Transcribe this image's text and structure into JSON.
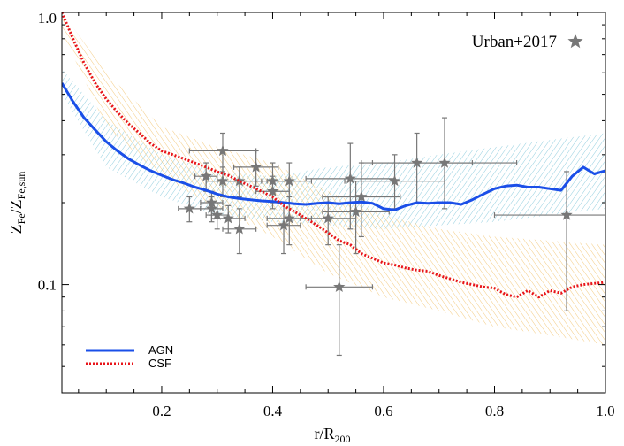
{
  "chart_data": {
    "type": "line",
    "title": "",
    "xlabel": {
      "main": "r/R",
      "sub": "200"
    },
    "ylabel": {
      "z1": "Z",
      "sub1": "Fe",
      "slash": "/",
      "z2": "Z",
      "sub2": "Fe,sun"
    },
    "xlim": [
      0.02,
      1.0
    ],
    "ylim": [
      0.04,
      1.0
    ],
    "yscale": "log",
    "x_ticks": [
      {
        "value": 0.2,
        "label": "0.2"
      },
      {
        "value": 0.4,
        "label": "0.4"
      },
      {
        "value": 0.6,
        "label": "0.6"
      },
      {
        "value": 0.8,
        "label": "0.8"
      },
      {
        "value": 1.0,
        "label": "1.0"
      }
    ],
    "y_ticks": [
      {
        "value": 0.1,
        "label": "0.1"
      },
      {
        "value": 1.0,
        "label": "1.0"
      }
    ],
    "grid": false,
    "legend": {
      "placement": "bottom-left",
      "entries": [
        "AGN",
        "CSF"
      ]
    },
    "annotation": "Urban+2017",
    "series": [
      {
        "name": "AGN",
        "color": "#1a4fe8",
        "style": "solid",
        "x": [
          0.02,
          0.04,
          0.06,
          0.08,
          0.1,
          0.12,
          0.14,
          0.16,
          0.18,
          0.2,
          0.22,
          0.24,
          0.26,
          0.28,
          0.3,
          0.32,
          0.34,
          0.36,
          0.38,
          0.4,
          0.42,
          0.44,
          0.46,
          0.48,
          0.5,
          0.52,
          0.54,
          0.56,
          0.58,
          0.6,
          0.62,
          0.64,
          0.66,
          0.68,
          0.7,
          0.72,
          0.74,
          0.76,
          0.78,
          0.8,
          0.82,
          0.84,
          0.86,
          0.88,
          0.9,
          0.92,
          0.94,
          0.96,
          0.98,
          1.0
        ],
        "y": [
          0.55,
          0.47,
          0.41,
          0.37,
          0.335,
          0.31,
          0.29,
          0.275,
          0.262,
          0.252,
          0.243,
          0.236,
          0.228,
          0.222,
          0.215,
          0.21,
          0.207,
          0.205,
          0.203,
          0.202,
          0.2,
          0.198,
          0.197,
          0.199,
          0.2,
          0.198,
          0.2,
          0.201,
          0.199,
          0.19,
          0.188,
          0.195,
          0.2,
          0.199,
          0.2,
          0.2,
          0.197,
          0.205,
          0.215,
          0.225,
          0.23,
          0.232,
          0.228,
          0.228,
          0.225,
          0.222,
          0.25,
          0.27,
          0.255,
          0.262
        ]
      },
      {
        "name": "CSF",
        "color": "#e8141a",
        "style": "dotted",
        "x": [
          0.02,
          0.04,
          0.06,
          0.08,
          0.1,
          0.12,
          0.14,
          0.16,
          0.18,
          0.2,
          0.22,
          0.24,
          0.26,
          0.28,
          0.3,
          0.32,
          0.34,
          0.36,
          0.38,
          0.4,
          0.42,
          0.44,
          0.46,
          0.48,
          0.5,
          0.52,
          0.54,
          0.56,
          0.58,
          0.6,
          0.62,
          0.64,
          0.66,
          0.68,
          0.7,
          0.72,
          0.74,
          0.76,
          0.78,
          0.8,
          0.82,
          0.84,
          0.86,
          0.88,
          0.9,
          0.92,
          0.94,
          0.96,
          0.98,
          1.0
        ],
        "y": [
          1.0,
          0.8,
          0.65,
          0.55,
          0.48,
          0.43,
          0.39,
          0.36,
          0.33,
          0.31,
          0.3,
          0.29,
          0.28,
          0.27,
          0.26,
          0.252,
          0.24,
          0.23,
          0.22,
          0.21,
          0.195,
          0.185,
          0.175,
          0.165,
          0.155,
          0.145,
          0.14,
          0.13,
          0.125,
          0.12,
          0.118,
          0.115,
          0.113,
          0.112,
          0.108,
          0.105,
          0.102,
          0.1,
          0.098,
          0.097,
          0.092,
          0.09,
          0.095,
          0.09,
          0.095,
          0.093,
          0.098,
          0.1,
          0.101,
          0.102
        ]
      }
    ],
    "bands": [
      {
        "name": "AGN scatter",
        "color": "#7fc6d9",
        "x": [
          0.02,
          0.1,
          0.2,
          0.3,
          0.4,
          0.5,
          0.6,
          0.7,
          0.8,
          0.9,
          1.0
        ],
        "lo": [
          0.5,
          0.27,
          0.21,
          0.18,
          0.17,
          0.165,
          0.16,
          0.165,
          0.17,
          0.18,
          0.19
        ],
        "hi": [
          0.62,
          0.4,
          0.3,
          0.26,
          0.25,
          0.27,
          0.28,
          0.3,
          0.32,
          0.34,
          0.36
        ]
      },
      {
        "name": "CSF scatter",
        "color": "#f2c26b",
        "x": [
          0.02,
          0.1,
          0.2,
          0.3,
          0.4,
          0.5,
          0.6,
          0.7,
          0.8,
          0.9,
          1.0
        ],
        "lo": [
          0.85,
          0.38,
          0.25,
          0.19,
          0.15,
          0.11,
          0.09,
          0.08,
          0.07,
          0.065,
          0.06
        ],
        "hi": [
          1.0,
          0.6,
          0.38,
          0.32,
          0.28,
          0.22,
          0.18,
          0.16,
          0.15,
          0.145,
          0.14
        ]
      }
    ],
    "observations": {
      "name": "Urban+2017",
      "color": "#777777",
      "points": [
        {
          "x": 0.25,
          "y": 0.19,
          "xerr": 0.02,
          "ylo": 0.17,
          "yhi": 0.21
        },
        {
          "x": 0.28,
          "y": 0.25,
          "xerr": 0.02,
          "ylo": 0.22,
          "yhi": 0.28
        },
        {
          "x": 0.29,
          "y": 0.2,
          "xerr": 0.02,
          "ylo": 0.18,
          "yhi": 0.22
        },
        {
          "x": 0.29,
          "y": 0.19,
          "xerr": 0.02,
          "ylo": 0.17,
          "yhi": 0.21
        },
        {
          "x": 0.3,
          "y": 0.18,
          "xerr": 0.02,
          "ylo": 0.16,
          "yhi": 0.2
        },
        {
          "x": 0.31,
          "y": 0.31,
          "xerr": 0.06,
          "ylo": 0.26,
          "yhi": 0.36
        },
        {
          "x": 0.31,
          "y": 0.24,
          "xerr": 0.03,
          "ylo": 0.21,
          "yhi": 0.27
        },
        {
          "x": 0.32,
          "y": 0.175,
          "xerr": 0.03,
          "ylo": 0.155,
          "yhi": 0.195
        },
        {
          "x": 0.34,
          "y": 0.16,
          "xerr": 0.03,
          "ylo": 0.13,
          "yhi": 0.19
        },
        {
          "x": 0.34,
          "y": 0.24,
          "xerr": 0.04,
          "ylo": 0.21,
          "yhi": 0.27
        },
        {
          "x": 0.37,
          "y": 0.27,
          "xerr": 0.04,
          "ylo": 0.23,
          "yhi": 0.31
        },
        {
          "x": 0.4,
          "y": 0.22,
          "xerr": 0.03,
          "ylo": 0.19,
          "yhi": 0.25
        },
        {
          "x": 0.4,
          "y": 0.24,
          "xerr": 0.03,
          "ylo": 0.2,
          "yhi": 0.28
        },
        {
          "x": 0.42,
          "y": 0.165,
          "xerr": 0.03,
          "ylo": 0.13,
          "yhi": 0.2
        },
        {
          "x": 0.43,
          "y": 0.175,
          "xerr": 0.04,
          "ylo": 0.14,
          "yhi": 0.21
        },
        {
          "x": 0.43,
          "y": 0.24,
          "xerr": 0.04,
          "ylo": 0.2,
          "yhi": 0.28
        },
        {
          "x": 0.5,
          "y": 0.175,
          "xerr": 0.05,
          "ylo": 0.14,
          "yhi": 0.21
        },
        {
          "x": 0.52,
          "y": 0.098,
          "xerr": 0.06,
          "ylo": 0.055,
          "yhi": 0.14
        },
        {
          "x": 0.54,
          "y": 0.245,
          "xerr": 0.08,
          "ylo": 0.16,
          "yhi": 0.33
        },
        {
          "x": 0.55,
          "y": 0.185,
          "xerr": 0.06,
          "ylo": 0.13,
          "yhi": 0.24
        },
        {
          "x": 0.56,
          "y": 0.21,
          "xerr": 0.07,
          "ylo": 0.15,
          "yhi": 0.28
        },
        {
          "x": 0.62,
          "y": 0.24,
          "xerr": 0.09,
          "ylo": 0.19,
          "yhi": 0.3
        },
        {
          "x": 0.66,
          "y": 0.28,
          "xerr": 0.1,
          "ylo": 0.2,
          "yhi": 0.36
        },
        {
          "x": 0.71,
          "y": 0.28,
          "xerr": 0.13,
          "ylo": 0.19,
          "yhi": 0.41
        },
        {
          "x": 0.93,
          "y": 0.18,
          "xerr": 0.13,
          "ylo": 0.08,
          "yhi": 0.26
        }
      ]
    }
  }
}
